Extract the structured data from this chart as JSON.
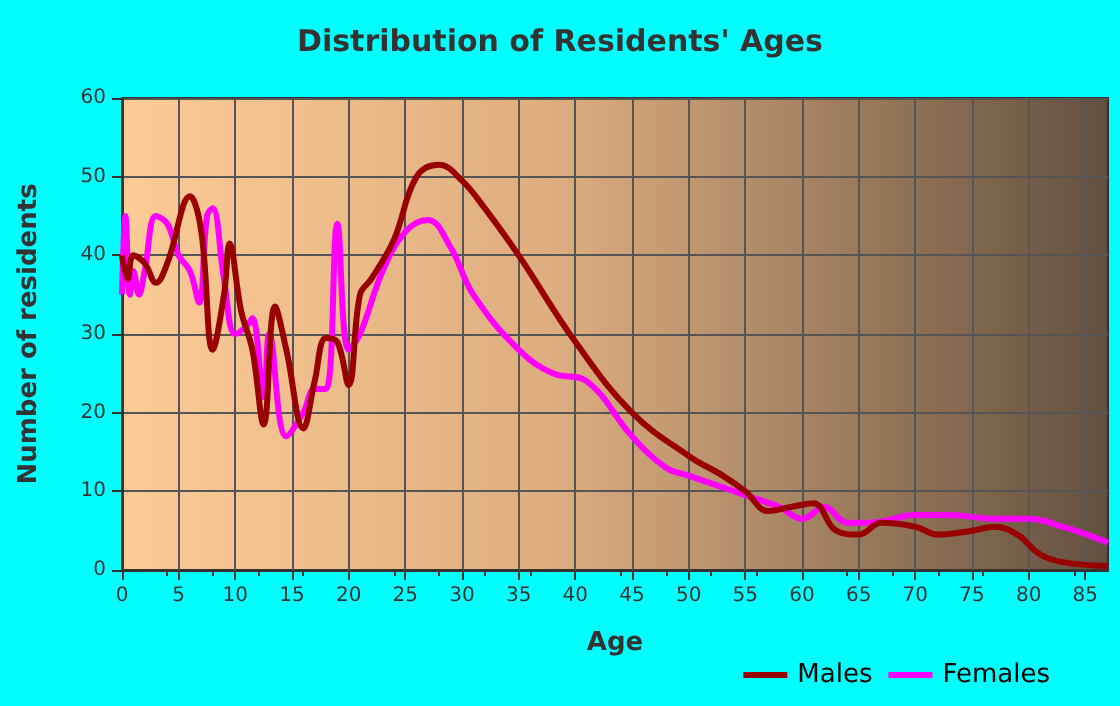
{
  "chart_data": {
    "type": "line",
    "title": "Distribution of Residents' Ages",
    "xlabel": "Age",
    "ylabel": "Number of residents",
    "xlim": [
      0,
      87
    ],
    "xticks": [
      0,
      5,
      10,
      15,
      20,
      25,
      30,
      35,
      40,
      45,
      50,
      55,
      60,
      65,
      70,
      75,
      80,
      85
    ],
    "ylim": [
      0,
      60
    ],
    "yticks": [
      0,
      10,
      20,
      30,
      40,
      50,
      60
    ],
    "grid": true,
    "legend": "bottom right",
    "series": [
      {
        "name": "Males",
        "color": "#990000",
        "x": [
          0,
          0.5,
          1,
          2,
          3,
          4,
          6,
          7,
          8,
          9,
          9.5,
          10.5,
          11.5,
          12.5,
          13.5,
          14.5,
          16,
          17,
          18,
          19,
          20,
          21,
          22,
          24,
          26,
          28,
          30,
          32,
          35,
          40,
          45,
          50,
          53,
          55,
          57,
          59,
          61,
          63,
          65,
          67,
          70,
          72,
          75,
          77,
          79,
          81,
          83,
          87
        ],
        "values": [
          40,
          37,
          40,
          39,
          36.5,
          39,
          47.5,
          43,
          28,
          35,
          41.5,
          33,
          28,
          18.5,
          33.5,
          28,
          18,
          24,
          29.5,
          29,
          23.5,
          35,
          37,
          42,
          50,
          51.5,
          49.5,
          46,
          40,
          29,
          20,
          14.5,
          12,
          10,
          7.5,
          8,
          8.5,
          5,
          4.5,
          6,
          5.5,
          4.5,
          5,
          5.5,
          4.5,
          2,
          1,
          0.5
        ]
      },
      {
        "name": "Females",
        "color": "#ff00ff",
        "x": [
          0,
          0.3,
          0.7,
          1,
          1.5,
          2,
          3,
          4,
          5,
          6,
          6.8,
          7.5,
          8,
          9,
          10,
          11,
          11.5,
          12.5,
          13,
          14.5,
          16,
          17,
          18,
          19,
          20,
          21,
          23,
          25,
          27,
          29,
          31,
          35,
          38,
          41,
          45,
          48,
          50,
          55,
          58,
          60,
          62,
          64,
          66,
          70,
          73,
          77,
          80,
          83,
          87
        ],
        "values": [
          35,
          45,
          35,
          38,
          35,
          38,
          45,
          44,
          40,
          38,
          34,
          45,
          46,
          37,
          30,
          31,
          32,
          22,
          30,
          17,
          20,
          23,
          23,
          44,
          28,
          30,
          38,
          43,
          44.5,
          41,
          35,
          28,
          25,
          24,
          17,
          13,
          12,
          9.5,
          8,
          6.5,
          8,
          6,
          6,
          7,
          7,
          6.5,
          6.5,
          5.5,
          3.5
        ]
      }
    ]
  }
}
